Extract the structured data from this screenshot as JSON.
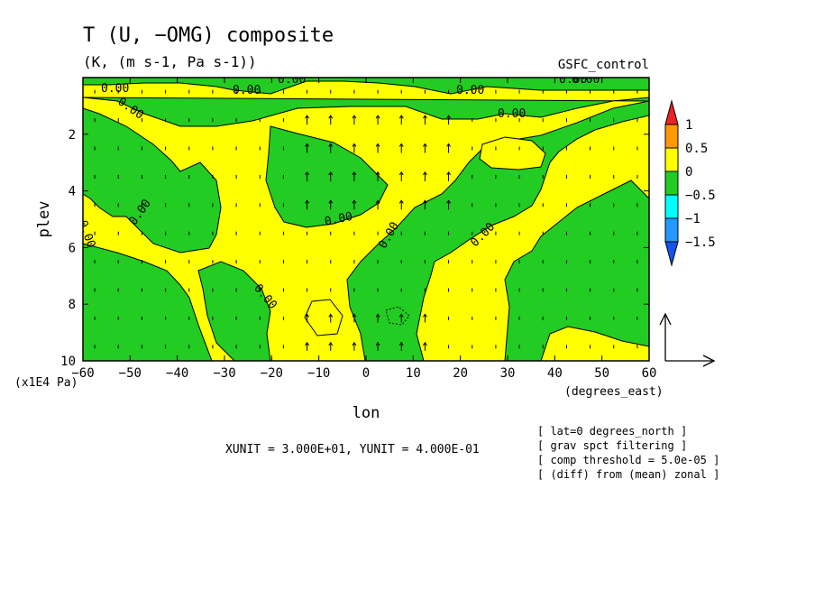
{
  "chart_data": {
    "type": "heatmap",
    "title": "T (U, −OMG) composite",
    "subtitle": "(K, (m s-1, Pa s-1))",
    "run_label": "GSFC_control",
    "xlabel": "lon",
    "xunits": "(degrees_east)",
    "ylabel": "plev",
    "yunits": "(x1E4 Pa)",
    "xlim": [
      -60,
      60
    ],
    "ylim": [
      10,
      0
    ],
    "xticks": [
      -60,
      -50,
      -40,
      -30,
      -20,
      -10,
      0,
      10,
      20,
      30,
      40,
      50,
      60
    ],
    "yticks": [
      2,
      4,
      6,
      8,
      10
    ],
    "colorbar": {
      "levels": [
        "1",
        "0.5",
        "0",
        "−0.5",
        "−1",
        "−1.5"
      ],
      "colors": [
        "#ee2222",
        "#ff9900",
        "#ffff00",
        "#22cc22",
        "#00ffff",
        "#2299ff",
        "#1155ee"
      ]
    },
    "contour_labels": [
      "0.00",
      "0.00",
      "0.00",
      "0.00",
      "0.00",
      "0.00",
      "0.00",
      "0.00",
      "0.00",
      "0.00",
      "0.00",
      "0.00",
      "0.00",
      "0.00"
    ],
    "unit_note": "XUNIT = 3.000E+01, YUNIT = 4.000E-01",
    "notes": [
      "[ lat=0 degrees_north ]",
      "[ grav spct filtering ]",
      "[ comp threshold = 5.0e-05 ]",
      "[ (diff) from (mean) zonal ]"
    ],
    "colors": {
      "positive_fill": "#ffff00",
      "negative_fill": "#22cc22"
    }
  }
}
